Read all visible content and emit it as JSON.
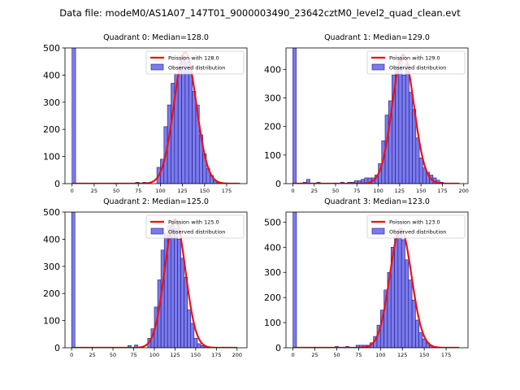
{
  "figure": {
    "title": "Data file: modeM0/AS1A07_147T01_9000003490_23642cztM0_level2_quad_clean.evt"
  },
  "style": {
    "bar_fill": "#7b7bef",
    "bar_edge": "#1a1a7a",
    "fit_line": "#ee1111",
    "axis": "#000000"
  },
  "chart_data": [
    {
      "type": "bar",
      "title": "Quadrant 0: Median=128.0",
      "median": 128.0,
      "bin_width": 4,
      "xlim": [
        -8,
        198
      ],
      "ylim": [
        0,
        500
      ],
      "xticks": [
        0,
        25,
        50,
        75,
        100,
        125,
        150,
        175
      ],
      "yticks": [
        0,
        100,
        200,
        300,
        400,
        500
      ],
      "legend": [
        "Poission with 128.0",
        "Observed distribution"
      ],
      "series": [
        {
          "name": "Poission with 128.0",
          "kind": "line",
          "mean": 128.0,
          "x_range": [
            0,
            190
          ]
        },
        {
          "name": "Observed distribution",
          "kind": "hist",
          "bins_start": [
            0,
            72,
            80,
            96,
            100,
            104,
            108,
            112,
            116,
            120,
            124,
            128,
            132,
            136,
            140,
            144,
            148,
            152,
            156,
            160,
            164
          ],
          "counts": [
            500,
            5,
            5,
            60,
            90,
            210,
            290,
            370,
            405,
            430,
            470,
            450,
            410,
            340,
            290,
            180,
            110,
            55,
            30,
            12,
            5
          ]
        }
      ]
    },
    {
      "type": "bar",
      "title": "Quadrant 1: Median=129.0",
      "median": 129.0,
      "bin_width": 4,
      "xlim": [
        -8,
        205
      ],
      "ylim": [
        0,
        475
      ],
      "xticks": [
        0,
        25,
        50,
        75,
        100,
        125,
        150,
        175,
        200
      ],
      "yticks": [
        0,
        100,
        200,
        300,
        400
      ],
      "legend": [
        "Poission with 129.0",
        "Observed distribution"
      ],
      "series": [
        {
          "name": "Poission with 129.0",
          "kind": "line",
          "mean": 129.0,
          "x_range": [
            0,
            195
          ]
        },
        {
          "name": "Observed distribution",
          "kind": "hist",
          "bins_start": [
            0,
            12,
            16,
            28,
            56,
            64,
            68,
            72,
            76,
            80,
            84,
            88,
            92,
            96,
            100,
            104,
            108,
            112,
            116,
            120,
            124,
            128,
            132,
            136,
            140,
            144,
            148,
            152,
            156,
            160,
            164,
            168,
            172
          ],
          "counts": [
            475,
            5,
            15,
            5,
            5,
            5,
            5,
            10,
            10,
            15,
            20,
            20,
            20,
            30,
            70,
            150,
            240,
            290,
            380,
            410,
            440,
            380,
            420,
            320,
            260,
            160,
            90,
            55,
            40,
            30,
            20,
            12,
            5
          ]
        }
      ]
    },
    {
      "type": "bar",
      "title": "Quadrant 2: Median=125.0",
      "median": 125.0,
      "bin_width": 4,
      "xlim": [
        -8,
        212
      ],
      "ylim": [
        0,
        500
      ],
      "xticks": [
        0,
        25,
        50,
        75,
        100,
        125,
        150,
        175,
        200
      ],
      "yticks": [
        0,
        100,
        200,
        300,
        400,
        500
      ],
      "legend": [
        "Poission with 125.0",
        "Observed distribution"
      ],
      "series": [
        {
          "name": "Poission with 125.0",
          "kind": "line",
          "mean": 125.0,
          "x_range": [
            0,
            200
          ]
        },
        {
          "name": "Observed distribution",
          "kind": "hist",
          "bins_start": [
            0,
            68,
            76,
            92,
            96,
            100,
            104,
            108,
            112,
            116,
            120,
            124,
            128,
            132,
            136,
            140,
            144,
            148,
            152,
            156,
            160
          ],
          "counts": [
            500,
            8,
            10,
            35,
            70,
            150,
            250,
            360,
            420,
            450,
            460,
            440,
            400,
            330,
            260,
            140,
            90,
            35,
            15,
            8,
            5
          ]
        }
      ]
    },
    {
      "type": "bar",
      "title": "Quadrant 3: Median=123.0",
      "median": 123.0,
      "bin_width": 4,
      "xlim": [
        -8,
        200
      ],
      "ylim": [
        0,
        540
      ],
      "xticks": [
        0,
        25,
        50,
        75,
        100,
        125,
        150,
        175
      ],
      "yticks": [
        0,
        100,
        200,
        300,
        400,
        500
      ],
      "legend": [
        "Poission with 123.0",
        "Observed distribution"
      ],
      "series": [
        {
          "name": "Poission with 123.0",
          "kind": "line",
          "mean": 123.0,
          "x_range": [
            0,
            190
          ]
        },
        {
          "name": "Observed distribution",
          "kind": "hist",
          "bins_start": [
            0,
            48,
            60,
            72,
            76,
            80,
            84,
            88,
            92,
            96,
            100,
            104,
            108,
            112,
            116,
            120,
            124,
            128,
            132,
            136,
            140,
            144,
            148,
            152,
            156,
            160
          ],
          "counts": [
            540,
            5,
            5,
            10,
            10,
            10,
            10,
            20,
            45,
            90,
            150,
            230,
            300,
            400,
            440,
            460,
            430,
            350,
            270,
            190,
            110,
            60,
            35,
            20,
            8,
            5
          ]
        }
      ]
    }
  ]
}
